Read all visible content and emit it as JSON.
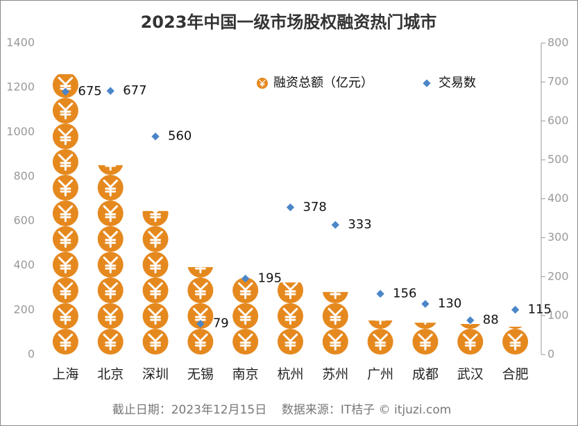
{
  "chart_data": {
    "type": "pictorial-bar-scatter",
    "title": "2023年中国一级市场股权融资热门城市",
    "categories": [
      "上海",
      "北京",
      "深圳",
      "无锡",
      "南京",
      "杭州",
      "苏州",
      "广州",
      "成都",
      "武汉",
      "合肥"
    ],
    "series": [
      {
        "name": "融资总额（亿元）",
        "color": "#e5891f",
        "values": [
          1260,
          851,
          645,
          393,
          345,
          324,
          281,
          153,
          143,
          137,
          125
        ]
      },
      {
        "name": "交易数",
        "color": "#4a86c8",
        "axis": "y2",
        "values": [
          675,
          677,
          560,
          79,
          195,
          378,
          333,
          156,
          130,
          88,
          115
        ]
      }
    ],
    "ylim": [
      0,
      1400
    ],
    "yticks": [
      0,
      200,
      400,
      600,
      800,
      1000,
      1200,
      1400
    ],
    "y2lim": [
      0,
      800
    ],
    "y2ticks": [
      0,
      100,
      200,
      300,
      400,
      500,
      600,
      700,
      800
    ],
    "legend": "top-right",
    "footnote": "截止日期：2023年12月15日    数据来源：IT桔子 © itjuzi.com"
  }
}
